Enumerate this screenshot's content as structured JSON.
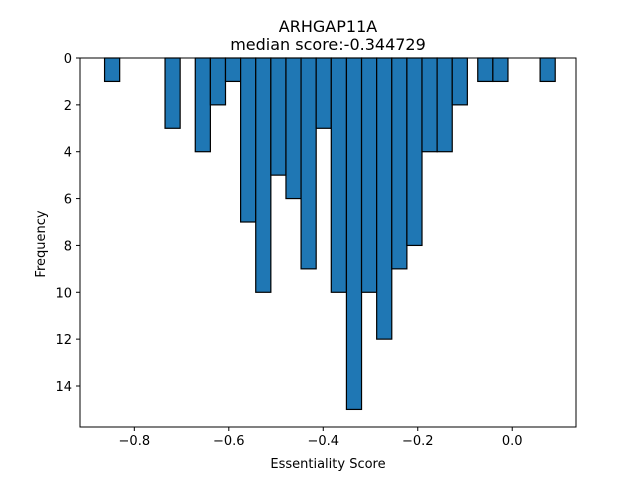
{
  "chart_data": {
    "type": "bar",
    "title": "ARHGAP11A",
    "subtitle": "median score:-0.344729",
    "xlabel": "Essentiality Score",
    "ylabel": "Frequency",
    "y_axis_inverted": true,
    "xlim": [
      -0.915,
      0.135
    ],
    "ylim": [
      0,
      15.75
    ],
    "x_ticks": [
      -0.8,
      -0.6,
      -0.4,
      -0.2,
      0.0
    ],
    "x_tick_labels": [
      "−0.8",
      "−0.6",
      "−0.4",
      "−0.2",
      "0.0"
    ],
    "y_ticks": [
      0,
      2,
      4,
      6,
      8,
      10,
      12,
      14
    ],
    "y_tick_labels": [
      "0",
      "2",
      "4",
      "6",
      "8",
      "10",
      "12",
      "14"
    ],
    "bin_width": 0.032,
    "bar_color": "#1f77b4",
    "edge_color": "#000000",
    "grid": false,
    "bins": [
      {
        "x": -0.847,
        "value": 1
      },
      {
        "x": -0.719,
        "value": 3
      },
      {
        "x": -0.655,
        "value": 4
      },
      {
        "x": -0.623,
        "value": 2
      },
      {
        "x": -0.591,
        "value": 1
      },
      {
        "x": -0.559,
        "value": 7
      },
      {
        "x": -0.527,
        "value": 10
      },
      {
        "x": -0.495,
        "value": 5
      },
      {
        "x": -0.463,
        "value": 6
      },
      {
        "x": -0.431,
        "value": 9
      },
      {
        "x": -0.399,
        "value": 3
      },
      {
        "x": -0.367,
        "value": 10
      },
      {
        "x": -0.335,
        "value": 15
      },
      {
        "x": -0.303,
        "value": 10
      },
      {
        "x": -0.271,
        "value": 12
      },
      {
        "x": -0.239,
        "value": 9
      },
      {
        "x": -0.207,
        "value": 8
      },
      {
        "x": -0.175,
        "value": 4
      },
      {
        "x": -0.143,
        "value": 4
      },
      {
        "x": -0.111,
        "value": 2
      },
      {
        "x": -0.057,
        "value": 1
      },
      {
        "x": -0.025,
        "value": 1
      },
      {
        "x": 0.075,
        "value": 1
      }
    ]
  }
}
